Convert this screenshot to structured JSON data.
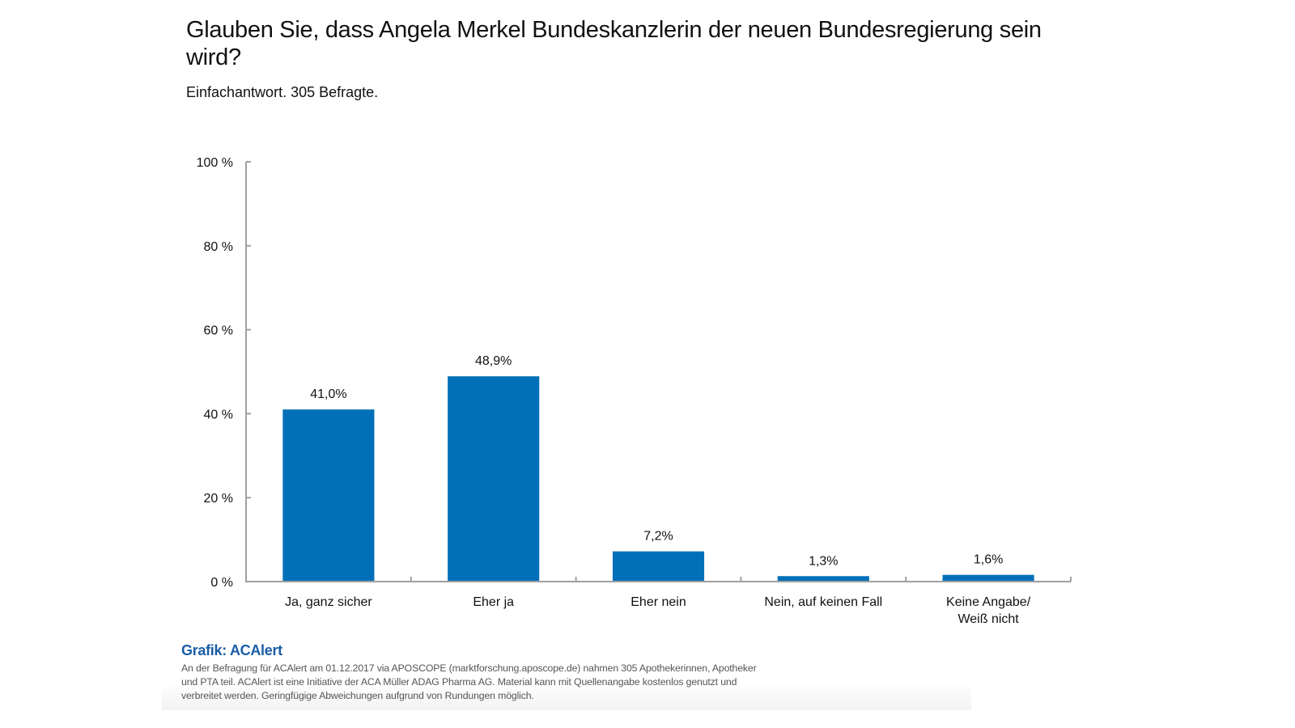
{
  "header": {
    "title": "Glauben Sie, dass Angela Merkel Bundeskanzlerin der neuen Bundesregierung sein wird?",
    "subtitle": "Einfachantwort. 305 Befragte."
  },
  "footer": {
    "credit": "Grafik: ACAlert",
    "note": "An der Befragung für ACAlert am 01.12.2017 via APOSCOPE (marktforschung.aposcope.de) nahmen 305 Apothekerinnen, Apotheker und PTA teil. ACAlert ist eine Initiative der ACA Müller ADAG Pharma AG. Material kann mit Quellenangabe kostenlos genutzt und verbreitet werden. Geringfügige Abweichungen aufgrund von Rundungen möglich."
  },
  "colors": {
    "bar": "#0270b8",
    "axis": "#a0a0a0",
    "credit": "#1a5da6"
  },
  "chart_data": {
    "type": "bar",
    "title": "Glauben Sie, dass Angela Merkel Bundeskanzlerin der neuen Bundesregierung sein wird?",
    "subtitle": "Einfachantwort. 305 Befragte.",
    "categories": [
      [
        "Ja, ganz sicher"
      ],
      [
        "Eher ja"
      ],
      [
        "Eher nein"
      ],
      [
        "Nein, auf keinen Fall"
      ],
      [
        "Keine Angabe/",
        "Weiß nicht"
      ]
    ],
    "values": [
      41.0,
      48.9,
      7.2,
      1.3,
      1.6
    ],
    "value_labels": [
      "41,0%",
      "48,9%",
      "7,2%",
      "1,3%",
      "1,6%"
    ],
    "xlabel": "",
    "ylabel": "",
    "ylim": [
      0,
      100
    ],
    "yticks": [
      0,
      20,
      40,
      60,
      80,
      100
    ],
    "ytick_labels": [
      "0 %",
      "20 %",
      "40 %",
      "60 %",
      "80 %",
      "100 %"
    ],
    "grid": false,
    "legend": "none"
  }
}
